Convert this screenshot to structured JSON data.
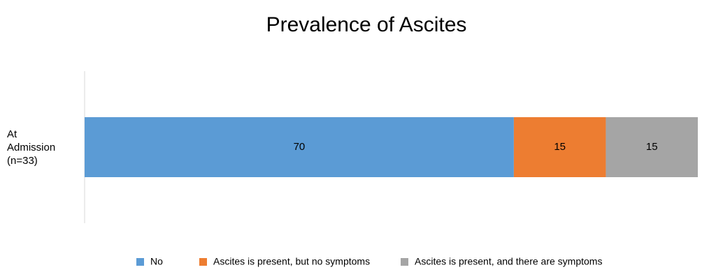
{
  "chart_data": {
    "type": "bar",
    "orientation": "horizontal",
    "stacked": true,
    "title": "Prevalence of Ascites",
    "categories": [
      "At\nAdmission\n(n=33)"
    ],
    "series": [
      {
        "name": "No",
        "color": "#5b9bd5",
        "values": [
          70
        ]
      },
      {
        "name": "Ascites is present, but no symptoms",
        "color": "#ed7d31",
        "values": [
          15
        ]
      },
      {
        "name": "Ascites is present, and there are symptoms",
        "color": "#a5a5a5",
        "values": [
          15
        ]
      }
    ],
    "legend": "bottom"
  }
}
